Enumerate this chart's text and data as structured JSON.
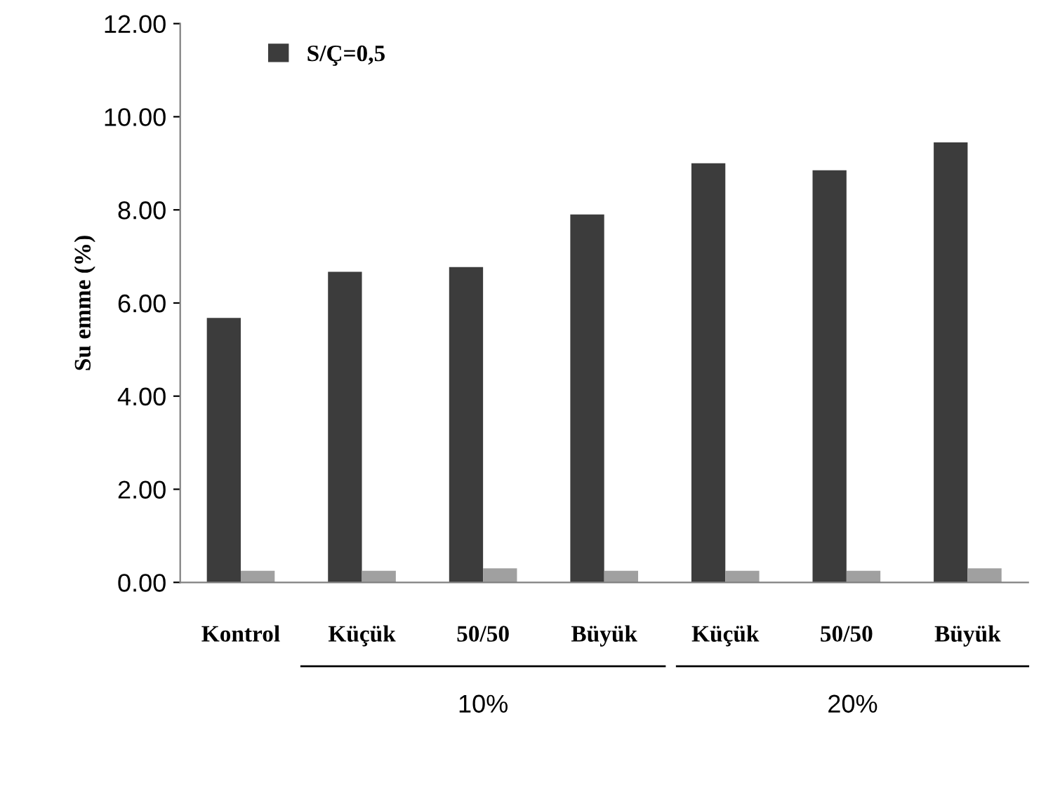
{
  "chart_data": {
    "type": "bar",
    "ylabel": "Su emme (%)",
    "categories": [
      "Kontrol",
      "Küçük",
      "50/50",
      "Büyük",
      "Küçük",
      "50/50",
      "Büyük"
    ],
    "series": [
      {
        "name": "S/Ç=0,5",
        "color": "#3c3c3c",
        "values": [
          5.68,
          6.67,
          6.77,
          7.9,
          9.0,
          8.85,
          9.45
        ]
      },
      {
        "color": "#a0a0a0",
        "values": [
          0.25,
          0.25,
          0.3,
          0.25,
          0.25,
          0.25,
          0.3
        ]
      }
    ],
    "ylim": [
      0,
      12
    ],
    "yticks": [
      {
        "value": 0,
        "label": "0.00"
      },
      {
        "value": 2,
        "label": "2.00"
      },
      {
        "value": 4,
        "label": "4.00"
      },
      {
        "value": 6,
        "label": "6.00"
      },
      {
        "value": 8,
        "label": "8.00"
      },
      {
        "value": 10,
        "label": "10.00"
      },
      {
        "value": 12,
        "label": "12.00"
      }
    ],
    "legend": "top left",
    "grid": false,
    "annotations": [
      "10%",
      "20%"
    ]
  }
}
